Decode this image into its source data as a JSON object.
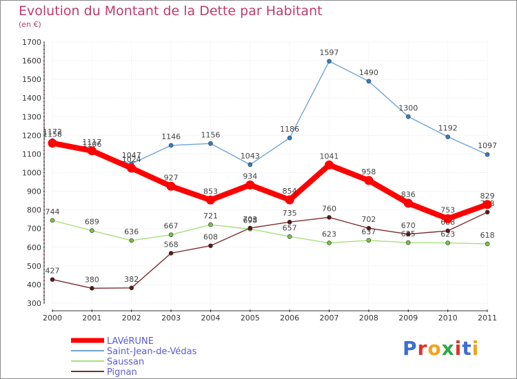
{
  "title": "Evolution du Montant de la Dette par Habitant",
  "subtitle": "(en €)",
  "logo": {
    "letters": [
      "P",
      "r",
      "o",
      "x",
      "i",
      "t",
      "i"
    ],
    "colors": [
      "#3b6fd1",
      "#e0322b",
      "#f2a31b",
      "#2fa84a",
      "#e0322b",
      "#3b6fd1",
      "#f2a31b"
    ]
  },
  "chart_data": {
    "type": "line",
    "x": [
      2000,
      2001,
      2002,
      2003,
      2004,
      2005,
      2006,
      2007,
      2008,
      2009,
      2010,
      2011
    ],
    "ylim": [
      300,
      1700
    ],
    "yticks": [
      300,
      400,
      500,
      600,
      700,
      800,
      900,
      1000,
      1100,
      1200,
      1300,
      1400,
      1500,
      1600,
      1700
    ],
    "grid": true,
    "legend_placement": "bottom-left",
    "series": [
      {
        "name": "Saint-Jean-de-Védas",
        "color": "#6fa3d4",
        "marker_color": "#2f7fc7",
        "values": [
          1172,
          1106,
          1047,
          1146,
          1156,
          1043,
          1186,
          1597,
          1490,
          1300,
          1192,
          1097
        ]
      },
      {
        "name": "Saussan",
        "color": "#a6e07a",
        "marker_color": "#74c43e",
        "values": [
          744,
          689,
          636,
          667,
          721,
          698,
          657,
          623,
          637,
          625,
          623,
          618
        ]
      },
      {
        "name": "Pignan",
        "color": "#7a2e2e",
        "marker_color": "#5c1818",
        "values": [
          427,
          380,
          382,
          568,
          608,
          703,
          735,
          760,
          702,
          670,
          688,
          788
        ]
      },
      {
        "name": "LAVéRUNE",
        "color": "#ff0000",
        "marker_color": "#ff0000",
        "values": [
          1158,
          1117,
          1024,
          927,
          853,
          934,
          854,
          1041,
          958,
          836,
          753,
          829
        ]
      }
    ],
    "legend": [
      {
        "name": "LAVéRUNE",
        "color": "#ff0000",
        "width": 7
      },
      {
        "name": "Saint-Jean-de-Védas",
        "color": "#6fa3d4",
        "width": 2
      },
      {
        "name": "Saussan",
        "color": "#a6e07a",
        "width": 2
      },
      {
        "name": "Pignan",
        "color": "#7a2e2e",
        "width": 2
      }
    ]
  }
}
